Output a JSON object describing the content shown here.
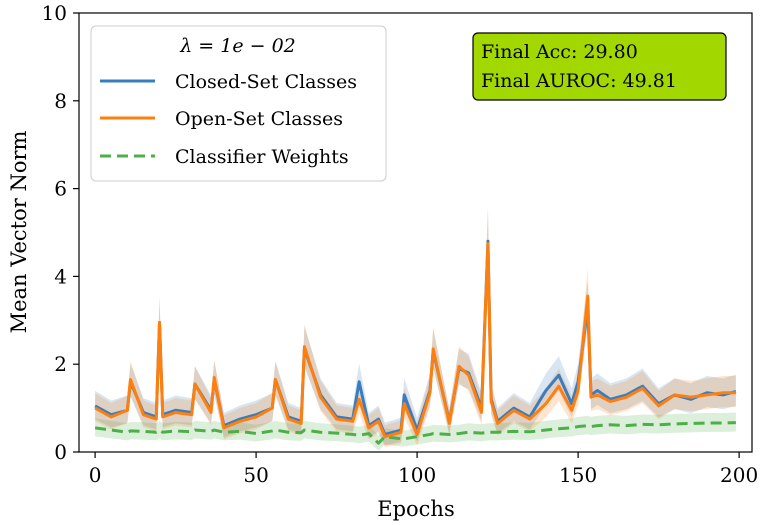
{
  "chart_data": {
    "type": "line",
    "xlabel": "Epochs",
    "ylabel": "Mean Vector Norm",
    "xlim": [
      -5,
      204
    ],
    "ylim": [
      0,
      10
    ],
    "xticks": [
      0,
      50,
      100,
      150,
      200
    ],
    "yticks": [
      0,
      2,
      4,
      6,
      8,
      10
    ],
    "grid": false,
    "legend": {
      "title": "λ = 1e − 02",
      "position": "top-left",
      "entries": [
        "Closed-Set Classes",
        "Open-Set Classes",
        "Classifier Weights"
      ]
    },
    "annotation": {
      "lines": [
        "Final Acc: 29.80",
        "Final AUROC: 49.81"
      ],
      "position": "top-right",
      "background": "#a2d800"
    },
    "x_sample_epochs": [
      0,
      5,
      10,
      11,
      15,
      19,
      20,
      21,
      25,
      30,
      31,
      36,
      37,
      40,
      45,
      50,
      55,
      56,
      60,
      64,
      65,
      70,
      75,
      80,
      82,
      85,
      88,
      90,
      95,
      96,
      100,
      104,
      105,
      110,
      113,
      116,
      120,
      122,
      123,
      125,
      130,
      135,
      140,
      144,
      148,
      150,
      153,
      154,
      156,
      160,
      165,
      170,
      175,
      180,
      185,
      190,
      195,
      199
    ],
    "series": [
      {
        "name": "Closed-Set Classes",
        "color": "#3a7dbf",
        "style": "solid",
        "band": true,
        "x": [
          0,
          5,
          10,
          11,
          15,
          19,
          20,
          21,
          25,
          30,
          31,
          36,
          37,
          40,
          45,
          50,
          55,
          56,
          60,
          64,
          65,
          70,
          75,
          80,
          82,
          85,
          88,
          90,
          95,
          96,
          100,
          104,
          105,
          110,
          113,
          116,
          120,
          122,
          123,
          125,
          130,
          135,
          140,
          144,
          148,
          150,
          153,
          154,
          156,
          160,
          165,
          170,
          175,
          180,
          185,
          190,
          195,
          199
        ],
        "values": [
          1.05,
          0.85,
          0.95,
          1.6,
          0.9,
          0.8,
          2.95,
          0.85,
          0.95,
          0.9,
          1.55,
          0.95,
          1.65,
          0.6,
          0.75,
          0.85,
          1.0,
          1.65,
          0.8,
          0.7,
          2.35,
          1.3,
          0.8,
          0.75,
          1.6,
          0.6,
          0.75,
          0.4,
          0.5,
          1.3,
          0.5,
          1.4,
          2.3,
          0.7,
          1.9,
          1.8,
          1.0,
          4.8,
          1.2,
          0.7,
          1.0,
          0.8,
          1.4,
          1.75,
          1.1,
          1.6,
          3.3,
          1.3,
          1.4,
          1.2,
          1.3,
          1.5,
          1.1,
          1.3,
          1.2,
          1.35,
          1.3,
          1.38
        ]
      },
      {
        "name": "Open-Set Classes",
        "color": "#ff7f0e",
        "style": "solid",
        "band": true,
        "x": [
          0,
          5,
          10,
          11,
          15,
          19,
          20,
          21,
          25,
          30,
          31,
          36,
          37,
          40,
          45,
          50,
          55,
          56,
          60,
          64,
          65,
          70,
          75,
          80,
          82,
          85,
          88,
          90,
          95,
          96,
          100,
          104,
          105,
          110,
          113,
          116,
          120,
          122,
          123,
          125,
          130,
          135,
          140,
          144,
          148,
          150,
          153,
          154,
          156,
          160,
          165,
          170,
          175,
          180,
          185,
          190,
          195,
          199
        ],
        "values": [
          1.0,
          0.8,
          0.95,
          1.65,
          0.85,
          0.75,
          2.95,
          0.8,
          0.9,
          0.85,
          1.55,
          0.9,
          1.7,
          0.55,
          0.7,
          0.8,
          1.0,
          1.65,
          0.75,
          0.65,
          2.4,
          1.25,
          0.75,
          0.7,
          1.2,
          0.55,
          0.7,
          0.35,
          0.45,
          1.1,
          0.4,
          1.35,
          2.35,
          0.65,
          1.95,
          1.75,
          0.9,
          4.75,
          1.15,
          0.65,
          0.95,
          0.75,
          1.1,
          1.5,
          0.95,
          1.4,
          3.55,
          1.25,
          1.3,
          1.15,
          1.25,
          1.45,
          1.05,
          1.3,
          1.25,
          1.3,
          1.35,
          1.35
        ]
      },
      {
        "name": "Classifier Weights",
        "color": "#4daf4a",
        "style": "dashed",
        "band": true,
        "x": [
          0,
          5,
          10,
          11,
          15,
          19,
          20,
          21,
          25,
          30,
          31,
          36,
          37,
          40,
          45,
          50,
          55,
          56,
          60,
          64,
          65,
          70,
          75,
          80,
          82,
          85,
          88,
          90,
          95,
          96,
          100,
          104,
          105,
          110,
          113,
          116,
          120,
          122,
          123,
          125,
          130,
          135,
          140,
          144,
          148,
          150,
          153,
          154,
          156,
          160,
          165,
          170,
          175,
          180,
          185,
          190,
          195,
          199
        ],
        "values": [
          0.55,
          0.5,
          0.45,
          0.48,
          0.47,
          0.45,
          0.5,
          0.45,
          0.48,
          0.46,
          0.5,
          0.47,
          0.5,
          0.45,
          0.47,
          0.42,
          0.48,
          0.5,
          0.45,
          0.44,
          0.5,
          0.45,
          0.43,
          0.4,
          0.38,
          0.42,
          0.2,
          0.35,
          0.3,
          0.3,
          0.35,
          0.4,
          0.42,
          0.4,
          0.42,
          0.45,
          0.43,
          0.45,
          0.45,
          0.45,
          0.47,
          0.46,
          0.5,
          0.53,
          0.55,
          0.58,
          0.6,
          0.58,
          0.6,
          0.62,
          0.6,
          0.63,
          0.62,
          0.64,
          0.65,
          0.66,
          0.66,
          0.67
        ]
      }
    ]
  }
}
